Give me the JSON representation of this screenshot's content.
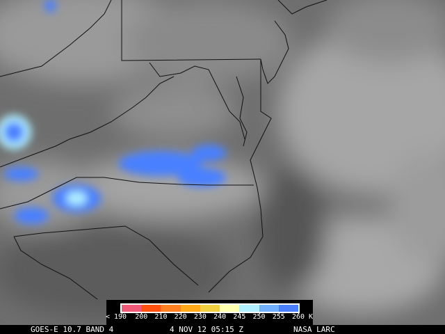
{
  "footer": {
    "satellite": "GOES-E 10.7 BAND 4",
    "datetime": "4 NOV 12 05:15 Z",
    "credit": "NASA LARC"
  },
  "legend": {
    "labels": [
      "< 190",
      "200",
      "210",
      "220",
      "230",
      "240",
      "245",
      "250",
      "255",
      "260 K"
    ],
    "colors": [
      "#f05a78",
      "#ff5010",
      "#ff8020",
      "#ffa818",
      "#f0d040",
      "#ffffb0",
      "#b0f0ff",
      "#70b0ff",
      "#4a80ff"
    ]
  }
}
